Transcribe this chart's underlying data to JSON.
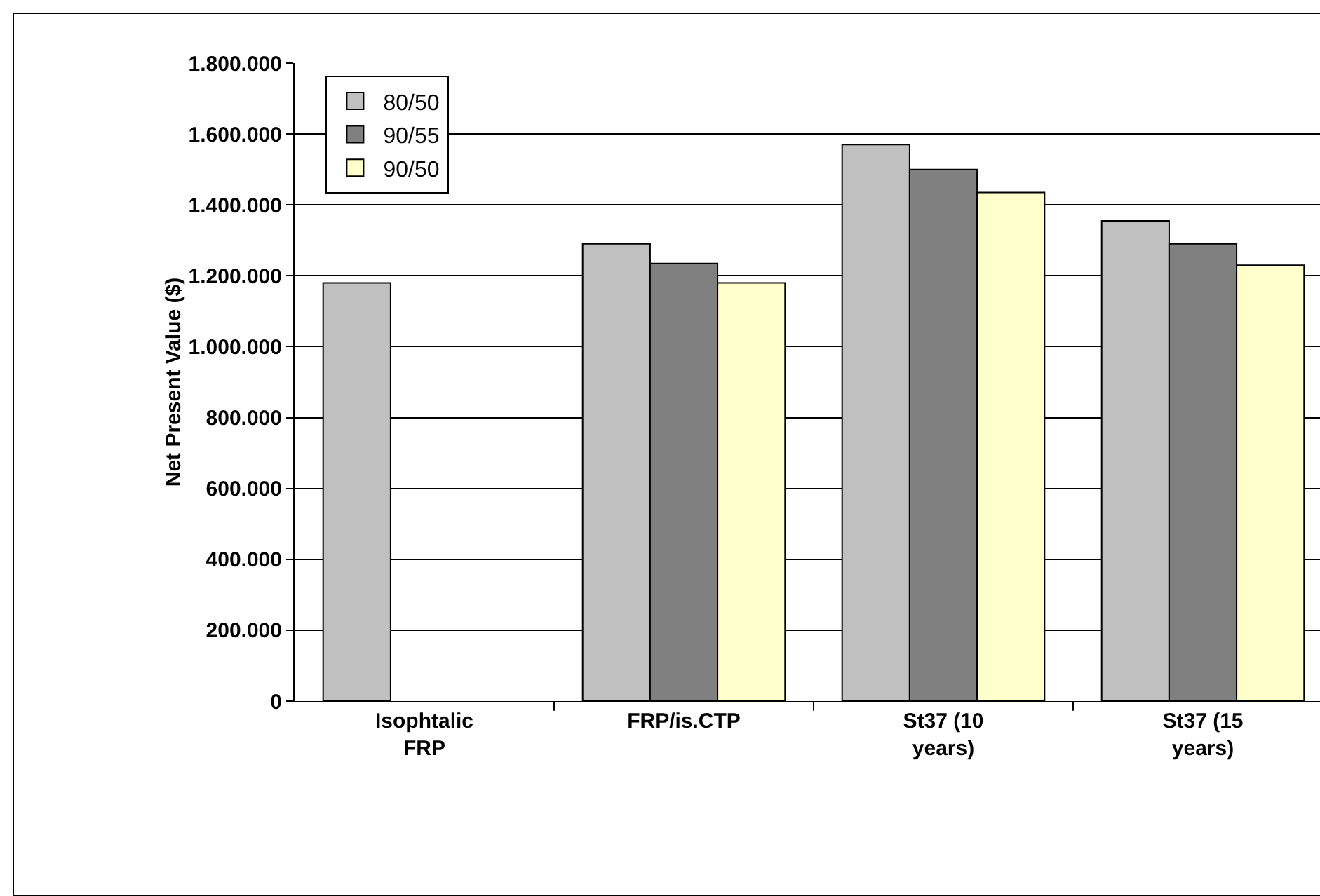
{
  "chart_data": {
    "type": "bar",
    "ylabel": "Net Present Value ($)",
    "categories": [
      "Isophtalic FRP",
      "FRP/is.CTP",
      "St37 (10 years)",
      "St37 (15 years)"
    ],
    "series": [
      {
        "name": "80/50",
        "color": "#c0c0c0",
        "values": [
          1180000,
          1290000,
          1570000,
          1355000
        ]
      },
      {
        "name": "90/55",
        "color": "#808080",
        "values": [
          null,
          1235000,
          1500000,
          1290000
        ]
      },
      {
        "name": "90/50",
        "color": "#ffffcc",
        "values": [
          null,
          1180000,
          1435000,
          1230000
        ]
      }
    ],
    "ylim": [
      0,
      1800000
    ],
    "yticks": [
      {
        "value": 0,
        "label": "0"
      },
      {
        "value": 200000,
        "label": "200.000"
      },
      {
        "value": 400000,
        "label": "400.000"
      },
      {
        "value": 600000,
        "label": "600.000"
      },
      {
        "value": 800000,
        "label": "800.000"
      },
      {
        "value": 1000000,
        "label": "1.000.000"
      },
      {
        "value": 1200000,
        "label": "1.200.000"
      },
      {
        "value": 1400000,
        "label": "1.400.000"
      },
      {
        "value": 1600000,
        "label": "1.600.000"
      },
      {
        "value": 1800000,
        "label": "1.800.000"
      }
    ],
    "grid": "y",
    "legend": "top left"
  }
}
